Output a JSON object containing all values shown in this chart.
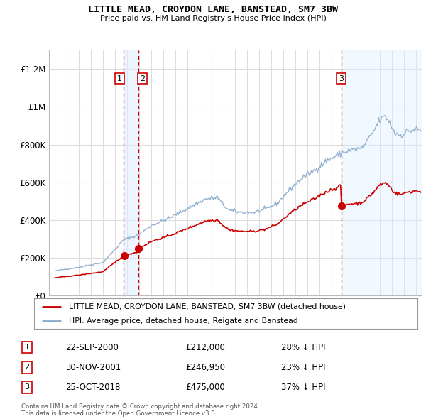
{
  "title": "LITTLE MEAD, CROYDON LANE, BANSTEAD, SM7 3BW",
  "subtitle": "Price paid vs. HM Land Registry's House Price Index (HPI)",
  "legend_line1": "LITTLE MEAD, CROYDON LANE, BANSTEAD, SM7 3BW (detached house)",
  "legend_line2": "HPI: Average price, detached house, Reigate and Banstead",
  "footer1": "Contains HM Land Registry data © Crown copyright and database right 2024.",
  "footer2": "This data is licensed under the Open Government Licence v3.0.",
  "sales": [
    {
      "num": 1,
      "date": "22-SEP-2000",
      "price": 212000,
      "pct": "28%",
      "x": 2000.72
    },
    {
      "num": 2,
      "date": "30-NOV-2001",
      "price": 246950,
      "pct": "23%",
      "x": 2001.92
    },
    {
      "num": 3,
      "date": "25-OCT-2018",
      "price": 475000,
      "pct": "37%",
      "x": 2018.81
    }
  ],
  "sale_color": "#cc0000",
  "hpi_color": "#88aacc",
  "vline_color": "#cc0000",
  "vline_bg_color": "#ddeeff",
  "ylim": [
    0,
    1300000
  ],
  "xlim_start": 1994.5,
  "xlim_end": 2025.5,
  "yticks": [
    0,
    200000,
    400000,
    600000,
    800000,
    1000000,
    1200000
  ],
  "ytick_labels": [
    "£0",
    "£200K",
    "£400K",
    "£600K",
    "£800K",
    "£1M",
    "£1.2M"
  ],
  "xticks": [
    1995,
    1996,
    1997,
    1998,
    1999,
    2000,
    2001,
    2002,
    2003,
    2004,
    2005,
    2006,
    2007,
    2008,
    2009,
    2010,
    2011,
    2012,
    2013,
    2014,
    2015,
    2016,
    2017,
    2018,
    2019,
    2020,
    2021,
    2022,
    2023,
    2024,
    2025
  ],
  "background_color": "#ffffff",
  "grid_color": "#dddddd"
}
